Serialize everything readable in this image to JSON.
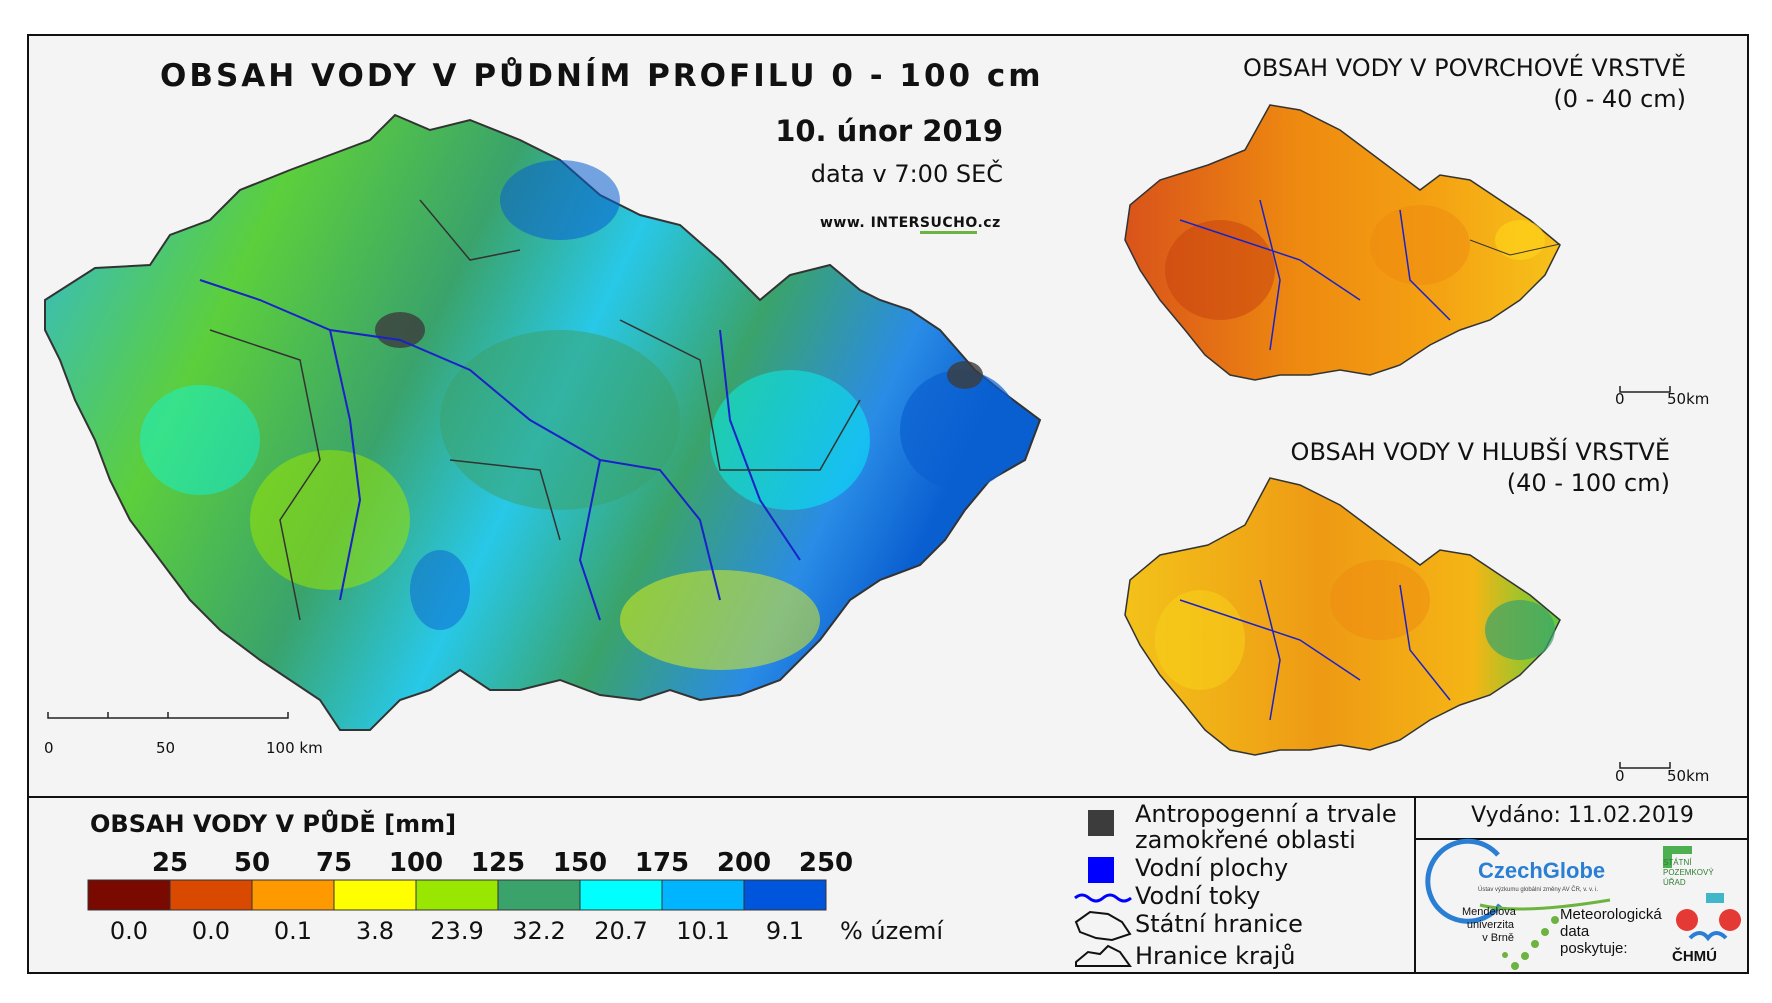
{
  "title": "OBSAH VODY V PŮDNÍM PROFILU 0 - 100 cm",
  "date": "10. únor 2019",
  "time": "data v 7:00 SEČ",
  "url": {
    "prefix": "www. INTER",
    "highlight": "SUCHO",
    "suffix": ".cz"
  },
  "main_scale": {
    "labels": [
      "0",
      "50",
      "100 km"
    ]
  },
  "surface_map": {
    "title_line1": "OBSAH VODY V POVRCHOVÉ VRSTVĚ",
    "title_line2": "(0 - 40 cm)",
    "scale": [
      "0",
      "50km"
    ]
  },
  "deep_map": {
    "title_line1": "OBSAH VODY V HLUBŠÍ VRSTVĚ",
    "title_line2": "(40 - 100 cm)",
    "scale": [
      "0",
      "50km"
    ]
  },
  "legend": {
    "title": "OBSAH VODY V PŮDĚ [mm]",
    "thresholds": [
      "25",
      "50",
      "75",
      "100",
      "125",
      "150",
      "175",
      "200",
      "250"
    ],
    "colors": [
      "#7a0a00",
      "#d94a00",
      "#ff9900",
      "#ffff00",
      "#99e600",
      "#3aa36b",
      "#00ffff",
      "#00b4ff",
      "#0055dd"
    ],
    "percentages": [
      "0.0",
      "0.0",
      "0.1",
      "3.8",
      "23.9",
      "32.2",
      "20.7",
      "10.1",
      "9.1"
    ],
    "percent_label": "% území"
  },
  "map_legend": [
    {
      "label_line1": "Antropogenní a trvale",
      "label_line2": "zamokřené oblasti",
      "icon": "dark-square-icon",
      "color": "#3c3c3c"
    },
    {
      "label_line1": "Vodní plochy",
      "icon": "blue-square-icon",
      "color": "#0000ff"
    },
    {
      "label_line1": "Vodní toky",
      "icon": "river-line-icon",
      "color": "#0000ff"
    },
    {
      "label_line1": "Státní hranice",
      "icon": "country-outline-icon"
    },
    {
      "label_line1": "Hranice krajů",
      "icon": "region-outline-icon"
    }
  ],
  "issued": "Vydáno: 11.02.2019",
  "logos": {
    "czechglobe": "CzechGlobe",
    "czechglobe_sub": "Ústav výzkumu globální změny AV ČR, v. v. i.",
    "spu_line1": "STÁTNÍ",
    "spu_line2": "POZEMKOVÝ",
    "spu_line3": "ÚŘAD",
    "mendel_line1": "Mendelova",
    "mendel_line2": "univerzita",
    "mendel_line3": "v Brně",
    "meteo_line1": "Meteorologická",
    "meteo_line2": "data",
    "meteo_line3": "poskytuje:",
    "chmu": "ČHMÚ"
  }
}
